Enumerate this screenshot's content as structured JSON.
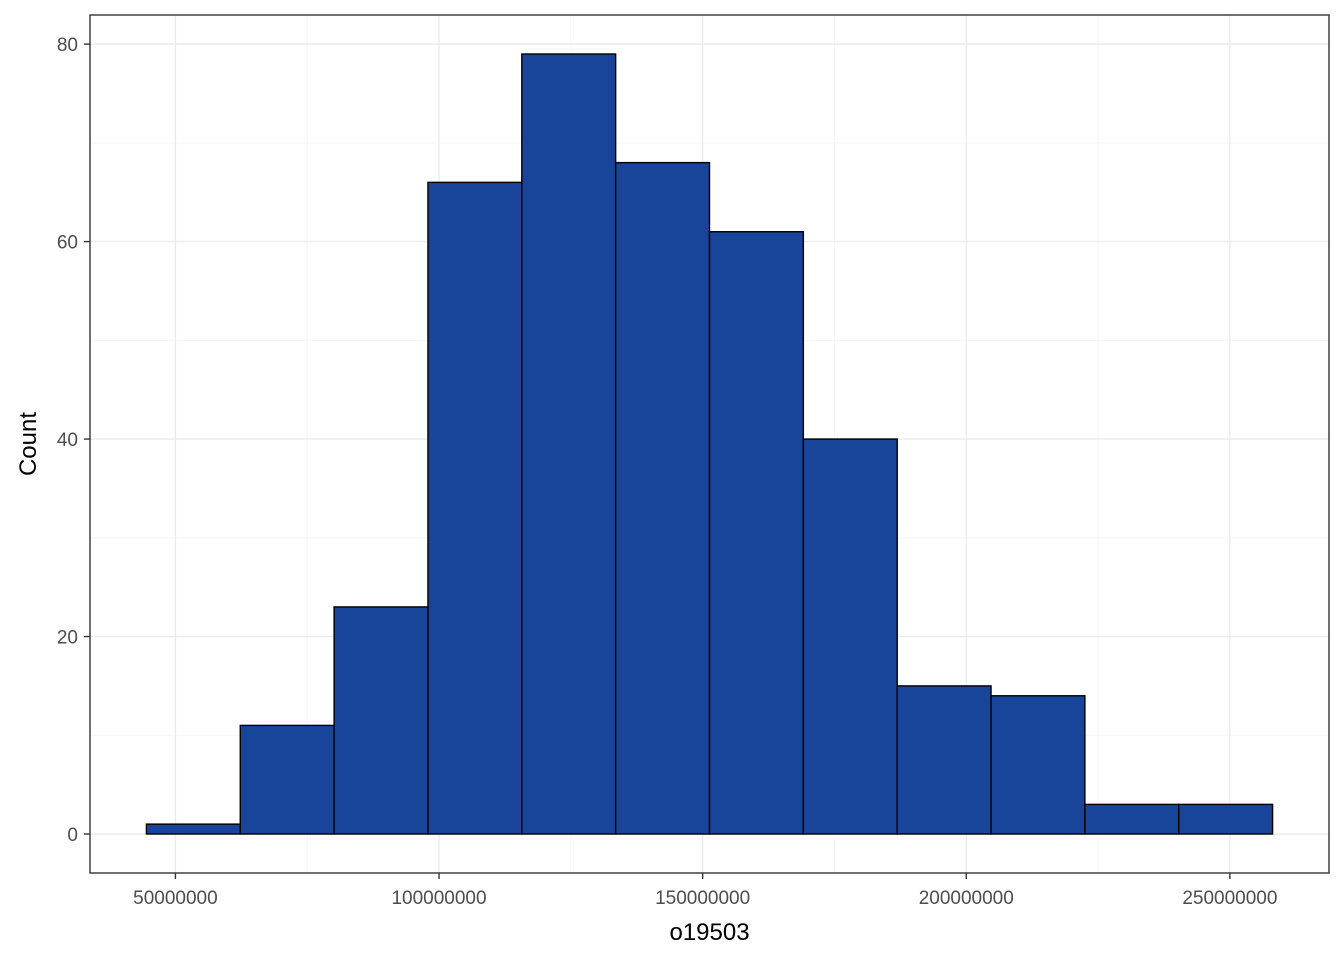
{
  "chart_data": {
    "type": "bar",
    "subtype": "histogram",
    "xlabel": "o19503",
    "ylabel": "Count",
    "bin_width": 17800000,
    "bins": [
      {
        "x0": 44500000,
        "x1": 62300000,
        "count": 1
      },
      {
        "x0": 62300000,
        "x1": 80100000,
        "count": 11
      },
      {
        "x0": 80100000,
        "x1": 97900000,
        "count": 23
      },
      {
        "x0": 97900000,
        "x1": 115700000,
        "count": 66
      },
      {
        "x0": 115700000,
        "x1": 133500000,
        "count": 79
      },
      {
        "x0": 133500000,
        "x1": 151300000,
        "count": 68
      },
      {
        "x0": 151300000,
        "x1": 169100000,
        "count": 61
      },
      {
        "x0": 169100000,
        "x1": 186900000,
        "count": 40
      },
      {
        "x0": 186900000,
        "x1": 204700000,
        "count": 15
      },
      {
        "x0": 204700000,
        "x1": 222500000,
        "count": 14
      },
      {
        "x0": 222500000,
        "x1": 240300000,
        "count": 3
      },
      {
        "x0": 240300000,
        "x1": 258100000,
        "count": 3
      }
    ],
    "xlim": [
      33800000,
      268800000
    ],
    "ylim": [
      -3.95,
      82.95
    ],
    "x_ticks": [
      50000000,
      100000000,
      150000000,
      200000000,
      250000000
    ],
    "x_tick_labels": [
      "50000000",
      "100000000",
      "150000000",
      "200000000",
      "250000000"
    ],
    "y_ticks": [
      0,
      20,
      40,
      60,
      80
    ],
    "y_tick_labels": [
      "0",
      "20",
      "40",
      "60",
      "80"
    ],
    "grid": true,
    "legend": "none",
    "colors": {
      "bar_fill": "#184499",
      "bar_outline": "#000000",
      "panel_border": "#333333",
      "grid_major": "#ebebeb",
      "grid_minor": "#f5f5f5",
      "tick_text": "#4d4d4d"
    }
  }
}
